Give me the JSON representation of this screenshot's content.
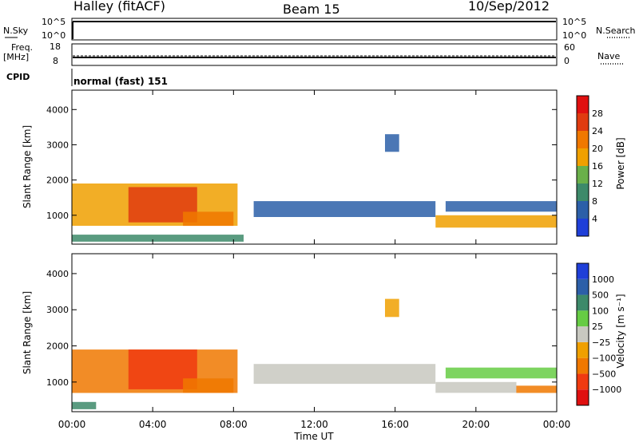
{
  "header": {
    "radar": "Halley (fitACF)",
    "beam": "Beam 15",
    "date": "10/Sep/2012"
  },
  "top_panels": {
    "nsky_label": "N.Sky",
    "nsky_ticks": [
      "10^5",
      "10^0"
    ],
    "nsearch_label": "N.Search",
    "nsearch_ticks": [
      "10^5",
      "10^0"
    ],
    "freq_label_1": "Freq.",
    "freq_label_2": "[MHz]",
    "freq_ticks": [
      "18",
      "8"
    ],
    "nave_label": "Nave",
    "nave_ticks": [
      "60",
      "0"
    ],
    "cpid_label": "CPID",
    "cpid_value": "normal (fast) 151"
  },
  "colors": {
    "power": [
      "#1f3fd8",
      "#2c5fa8",
      "#3d8a6a",
      "#6ab04a",
      "#f0a000",
      "#f07800",
      "#e03b10",
      "#e01010"
    ],
    "velocity": [
      "#e01010",
      "#f03a10",
      "#f07800",
      "#f0a000",
      "#c8c8c0",
      "#66cc44",
      "#3d8a6a",
      "#2c5fa8",
      "#1f3fd8"
    ]
  },
  "chart_data": [
    {
      "type": "heatmap",
      "name": "power",
      "ylabel": "Slant Range [km]",
      "xlabel": "",
      "x_ticks": [
        "00:00",
        "04:00",
        "08:00",
        "12:00",
        "16:00",
        "20:00",
        "00:00"
      ],
      "y_ticks": [
        "1000",
        "2000",
        "3000",
        "4000"
      ],
      "xlim_hours": [
        0,
        24
      ],
      "ylim_km": [
        180,
        4550
      ],
      "colorbar_label": "Power [dB]",
      "colorbar_ticks": [
        "4",
        "8",
        "12",
        "16",
        "20",
        "24",
        "28"
      ],
      "color_levels_db": [
        0,
        4,
        8,
        12,
        16,
        20,
        24,
        28,
        32
      ],
      "regions": [
        {
          "t0": 0.0,
          "t1": 8.2,
          "r0": 700,
          "r1": 1900,
          "value": 18
        },
        {
          "t0": 2.8,
          "t1": 6.2,
          "r0": 800,
          "r1": 1800,
          "value": 26
        },
        {
          "t0": 5.5,
          "t1": 8.0,
          "r0": 700,
          "r1": 1100,
          "value": 20
        },
        {
          "t0": 0.0,
          "t1": 8.5,
          "r0": 250,
          "r1": 450,
          "value": 8
        },
        {
          "t0": 9.0,
          "t1": 18.0,
          "r0": 950,
          "r1": 1400,
          "value": 6
        },
        {
          "t0": 18.0,
          "t1": 24.0,
          "r0": 650,
          "r1": 1000,
          "value": 18
        },
        {
          "t0": 18.5,
          "t1": 24.0,
          "r0": 1100,
          "r1": 1400,
          "value": 6
        },
        {
          "t0": 15.5,
          "t1": 16.2,
          "r0": 2800,
          "r1": 3300,
          "value": 6
        }
      ]
    },
    {
      "type": "heatmap",
      "name": "velocity",
      "ylabel": "Slant Range [km]",
      "xlabel": "Time UT",
      "x_ticks": [
        "00:00",
        "04:00",
        "08:00",
        "12:00",
        "16:00",
        "20:00",
        "00:00"
      ],
      "y_ticks": [
        "1000",
        "2000",
        "3000",
        "4000"
      ],
      "xlim_hours": [
        0,
        24
      ],
      "ylim_km": [
        180,
        4550
      ],
      "colorbar_label": "Velocity [m s⁻¹]",
      "colorbar_ticks": [
        "1000",
        "500",
        "100",
        "25",
        "−25",
        "−100",
        "−500",
        "−1000"
      ],
      "regions": [
        {
          "t0": 0.0,
          "t1": 8.2,
          "r0": 700,
          "r1": 1900,
          "value": -250
        },
        {
          "t0": 2.8,
          "t1": 6.2,
          "r0": 800,
          "r1": 1900,
          "value": -700
        },
        {
          "t0": 5.5,
          "t1": 8.0,
          "r0": 700,
          "r1": 1100,
          "value": -150
        },
        {
          "t0": 0.0,
          "t1": 1.2,
          "r0": 250,
          "r1": 450,
          "value": 300
        },
        {
          "t0": 9.0,
          "t1": 18.0,
          "r0": 950,
          "r1": 1500,
          "value": 0
        },
        {
          "t0": 18.0,
          "t1": 22.0,
          "r0": 700,
          "r1": 1000,
          "value": 0
        },
        {
          "t0": 22.0,
          "t1": 24.0,
          "r0": 700,
          "r1": 900,
          "value": -120
        },
        {
          "t0": 18.5,
          "t1": 24.0,
          "r0": 1100,
          "r1": 1400,
          "value": 60
        },
        {
          "t0": 15.5,
          "t1": 16.2,
          "r0": 2800,
          "r1": 3300,
          "value": -60
        }
      ]
    }
  ]
}
